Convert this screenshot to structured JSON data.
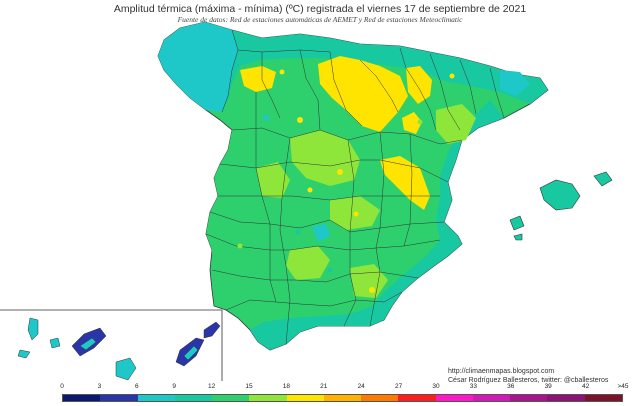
{
  "title": "Amplitud térmica (máxima - mínima) (ºC) registrada el viernes 17 de septiembre de 2021",
  "subtitle": "Fuente de datos: Red de estaciones automáticas de AEMET y Red de estaciones Meteoclimatic",
  "credits": {
    "url": "http://climaenmapas.blogspot.com",
    "author": "César Rodríguez Ballesteros, twitter: @cballesteros"
  },
  "legend": {
    "unit": "ºC",
    "ticks": [
      "0",
      "3",
      "6",
      "9",
      "12",
      "15",
      "18",
      "21",
      "24",
      "27",
      "30",
      "33",
      "36",
      "39",
      "42",
      ">45"
    ],
    "colors": [
      "#0a1a6e",
      "#2a36a8",
      "#1ec8c8",
      "#18c8a0",
      "#2ed06e",
      "#8ee63a",
      "#ffe400",
      "#ffb200",
      "#ff7a00",
      "#ff1e1e",
      "#ff18c8",
      "#d21ab4",
      "#a8148c",
      "#8c1478",
      "#7a1428"
    ]
  },
  "map": {
    "region": "Península Ibérica (España) e Islas Baleares e Islas Canarias",
    "dominant_range": "12–15",
    "max_range_observed": "18–21",
    "min_range_observed": "3–6"
  }
}
